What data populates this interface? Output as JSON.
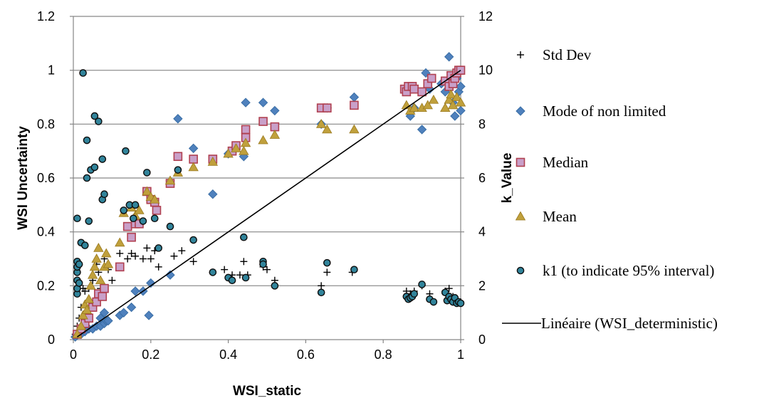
{
  "chart_data": {
    "type": "scatter",
    "xlabel": "WSI_static",
    "ylabel": "WSI Uncertainty",
    "y2label": "k_Value",
    "xlim": [
      0,
      1
    ],
    "ylim": [
      0,
      1.2
    ],
    "y2lim": [
      0,
      12
    ],
    "x_ticks": [
      "0",
      "0.2",
      "0.4",
      "0.6",
      "0.8",
      "1"
    ],
    "x_tick_values": [
      0,
      0.2,
      0.4,
      0.6,
      0.8,
      1
    ],
    "y_ticks": [
      "0",
      "0.2",
      "0.4",
      "0.6",
      "0.8",
      "1",
      "1.2"
    ],
    "y_tick_values": [
      0,
      0.2,
      0.4,
      0.6,
      0.8,
      1,
      1.2
    ],
    "y2_ticks": [
      "0",
      "2",
      "4",
      "6",
      "8",
      "10",
      "12"
    ],
    "y2_tick_values": [
      0,
      2,
      4,
      6,
      8,
      10,
      12
    ],
    "grid": {
      "horizontal": true,
      "vertical": false
    },
    "legend_position": "right",
    "series": [
      {
        "name": "Std Dev",
        "axis": "left",
        "marker": "plus",
        "color": "#000000",
        "points": [
          [
            0.005,
            0.02
          ],
          [
            0.01,
            0.05
          ],
          [
            0.015,
            0.08
          ],
          [
            0.02,
            0.12
          ],
          [
            0.025,
            0.19
          ],
          [
            0.03,
            0.18
          ],
          [
            0.04,
            0.19
          ],
          [
            0.05,
            0.22
          ],
          [
            0.06,
            0.28
          ],
          [
            0.065,
            0.25
          ],
          [
            0.07,
            0.19
          ],
          [
            0.08,
            0.3
          ],
          [
            0.09,
            0.26
          ],
          [
            0.1,
            0.22
          ],
          [
            0.12,
            0.32
          ],
          [
            0.14,
            0.3
          ],
          [
            0.15,
            0.32
          ],
          [
            0.16,
            0.31
          ],
          [
            0.18,
            0.3
          ],
          [
            0.19,
            0.34
          ],
          [
            0.2,
            0.3
          ],
          [
            0.21,
            0.33
          ],
          [
            0.22,
            0.27
          ],
          [
            0.26,
            0.31
          ],
          [
            0.28,
            0.33
          ],
          [
            0.31,
            0.29
          ],
          [
            0.36,
            0.25
          ],
          [
            0.39,
            0.26
          ],
          [
            0.41,
            0.24
          ],
          [
            0.43,
            0.24
          ],
          [
            0.45,
            0.24
          ],
          [
            0.44,
            0.29
          ],
          [
            0.49,
            0.27
          ],
          [
            0.5,
            0.26
          ],
          [
            0.52,
            0.22
          ],
          [
            0.64,
            0.2
          ],
          [
            0.655,
            0.25
          ],
          [
            0.72,
            0.25
          ],
          [
            0.86,
            0.18
          ],
          [
            0.87,
            0.17
          ],
          [
            0.88,
            0.18
          ],
          [
            0.9,
            0.2
          ],
          [
            0.92,
            0.17
          ],
          [
            0.96,
            0.18
          ],
          [
            0.97,
            0.19
          ],
          [
            0.98,
            0.16
          ],
          [
            0.99,
            0.15
          ],
          [
            1.0,
            0.14
          ]
        ]
      },
      {
        "name": "Mode of non limited",
        "axis": "left",
        "marker": "diamond",
        "color": "#4f81bd",
        "points": [
          [
            0.005,
            0.01
          ],
          [
            0.01,
            0.02
          ],
          [
            0.015,
            0.03
          ],
          [
            0.02,
            0.02
          ],
          [
            0.03,
            0.03
          ],
          [
            0.04,
            0.04
          ],
          [
            0.05,
            0.04
          ],
          [
            0.06,
            0.05
          ],
          [
            0.07,
            0.05
          ],
          [
            0.08,
            0.06
          ],
          [
            0.085,
            0.07
          ],
          [
            0.09,
            0.07
          ],
          [
            0.07,
            0.08
          ],
          [
            0.08,
            0.1
          ],
          [
            0.12,
            0.09
          ],
          [
            0.13,
            0.1
          ],
          [
            0.15,
            0.12
          ],
          [
            0.16,
            0.18
          ],
          [
            0.18,
            0.18
          ],
          [
            0.2,
            0.21
          ],
          [
            0.195,
            0.09
          ],
          [
            0.25,
            0.24
          ],
          [
            0.27,
            0.82
          ],
          [
            0.31,
            0.71
          ],
          [
            0.36,
            0.54
          ],
          [
            0.4,
            0.69
          ],
          [
            0.44,
            0.68
          ],
          [
            0.445,
            0.88
          ],
          [
            0.49,
            0.88
          ],
          [
            0.52,
            0.85
          ],
          [
            0.64,
            0.8
          ],
          [
            0.655,
            0.86
          ],
          [
            0.725,
            0.9
          ],
          [
            0.86,
            0.93
          ],
          [
            0.87,
            0.83
          ],
          [
            0.88,
            0.86
          ],
          [
            0.9,
            0.78
          ],
          [
            0.91,
            0.99
          ],
          [
            0.92,
            0.93
          ],
          [
            0.95,
            0.95
          ],
          [
            0.96,
            0.92
          ],
          [
            0.97,
            1.05
          ],
          [
            0.98,
            0.88
          ],
          [
            0.985,
            0.83
          ],
          [
            0.99,
            0.97
          ],
          [
            0.995,
            0.92
          ],
          [
            1.0,
            0.85
          ],
          [
            1.0,
            0.94
          ]
        ]
      },
      {
        "name": "Median",
        "axis": "left",
        "marker": "square",
        "color": "#c9a0c9",
        "points": [
          [
            0.01,
            0.02
          ],
          [
            0.02,
            0.04
          ],
          [
            0.03,
            0.06
          ],
          [
            0.04,
            0.08
          ],
          [
            0.05,
            0.12
          ],
          [
            0.06,
            0.14
          ],
          [
            0.065,
            0.17
          ],
          [
            0.075,
            0.16
          ],
          [
            0.08,
            0.19
          ],
          [
            0.12,
            0.27
          ],
          [
            0.14,
            0.42
          ],
          [
            0.15,
            0.38
          ],
          [
            0.16,
            0.43
          ],
          [
            0.17,
            0.43
          ],
          [
            0.19,
            0.55
          ],
          [
            0.2,
            0.52
          ],
          [
            0.21,
            0.51
          ],
          [
            0.215,
            0.48
          ],
          [
            0.25,
            0.58
          ],
          [
            0.27,
            0.68
          ],
          [
            0.31,
            0.67
          ],
          [
            0.36,
            0.67
          ],
          [
            0.41,
            0.7
          ],
          [
            0.42,
            0.72
          ],
          [
            0.445,
            0.78
          ],
          [
            0.445,
            0.75
          ],
          [
            0.49,
            0.81
          ],
          [
            0.52,
            0.79
          ],
          [
            0.64,
            0.86
          ],
          [
            0.655,
            0.86
          ],
          [
            0.725,
            0.87
          ],
          [
            0.855,
            0.93
          ],
          [
            0.86,
            0.92
          ],
          [
            0.865,
            0.94
          ],
          [
            0.875,
            0.94
          ],
          [
            0.88,
            0.93
          ],
          [
            0.9,
            0.92
          ],
          [
            0.915,
            0.95
          ],
          [
            0.925,
            0.97
          ],
          [
            0.96,
            0.96
          ],
          [
            0.97,
            0.94
          ],
          [
            0.975,
            0.98
          ],
          [
            0.98,
            0.95
          ],
          [
            0.985,
            0.97
          ],
          [
            0.99,
            0.99
          ],
          [
            0.995,
            1.0
          ],
          [
            1.0,
            1.0
          ]
        ]
      },
      {
        "name": "Mean",
        "axis": "left",
        "marker": "triangle",
        "color": "#c0a03c",
        "points": [
          [
            0.01,
            0.02
          ],
          [
            0.02,
            0.05
          ],
          [
            0.025,
            0.09
          ],
          [
            0.03,
            0.13
          ],
          [
            0.035,
            0.11
          ],
          [
            0.04,
            0.15
          ],
          [
            0.045,
            0.2
          ],
          [
            0.05,
            0.24
          ],
          [
            0.055,
            0.27
          ],
          [
            0.06,
            0.3
          ],
          [
            0.065,
            0.34
          ],
          [
            0.07,
            0.22
          ],
          [
            0.08,
            0.27
          ],
          [
            0.085,
            0.32
          ],
          [
            0.09,
            0.28
          ],
          [
            0.12,
            0.36
          ],
          [
            0.13,
            0.47
          ],
          [
            0.15,
            0.49
          ],
          [
            0.16,
            0.46
          ],
          [
            0.17,
            0.48
          ],
          [
            0.19,
            0.55
          ],
          [
            0.2,
            0.53
          ],
          [
            0.21,
            0.52
          ],
          [
            0.25,
            0.59
          ],
          [
            0.27,
            0.62
          ],
          [
            0.31,
            0.64
          ],
          [
            0.36,
            0.66
          ],
          [
            0.4,
            0.69
          ],
          [
            0.42,
            0.71
          ],
          [
            0.44,
            0.7
          ],
          [
            0.445,
            0.73
          ],
          [
            0.49,
            0.74
          ],
          [
            0.52,
            0.76
          ],
          [
            0.64,
            0.8
          ],
          [
            0.655,
            0.78
          ],
          [
            0.725,
            0.78
          ],
          [
            0.86,
            0.87
          ],
          [
            0.87,
            0.85
          ],
          [
            0.88,
            0.86
          ],
          [
            0.9,
            0.86
          ],
          [
            0.915,
            0.87
          ],
          [
            0.93,
            0.89
          ],
          [
            0.96,
            0.86
          ],
          [
            0.97,
            0.89
          ],
          [
            0.975,
            0.91
          ],
          [
            0.98,
            0.87
          ],
          [
            0.99,
            0.9
          ],
          [
            1.0,
            0.88
          ]
        ]
      },
      {
        "name": "k1 (to indicate 95% interval)",
        "axis": "right",
        "marker": "circle",
        "color": "#31849b",
        "points": [
          [
            0.01,
            1.7
          ],
          [
            0.01,
            1.9
          ],
          [
            0.01,
            2.2
          ],
          [
            0.01,
            2.5
          ],
          [
            0.01,
            2.7
          ],
          [
            0.01,
            2.9
          ],
          [
            0.01,
            4.5
          ],
          [
            0.015,
            2.1
          ],
          [
            0.015,
            2.8
          ],
          [
            0.02,
            3.6
          ],
          [
            0.025,
            9.9
          ],
          [
            0.03,
            3.5
          ],
          [
            0.035,
            7.4
          ],
          [
            0.035,
            6.0
          ],
          [
            0.04,
            4.4
          ],
          [
            0.045,
            6.3
          ],
          [
            0.055,
            6.4
          ],
          [
            0.055,
            8.3
          ],
          [
            0.065,
            8.1
          ],
          [
            0.075,
            6.7
          ],
          [
            0.075,
            5.2
          ],
          [
            0.08,
            5.4
          ],
          [
            0.13,
            4.8
          ],
          [
            0.135,
            7.0
          ],
          [
            0.145,
            5.0
          ],
          [
            0.155,
            4.5
          ],
          [
            0.16,
            5.0
          ],
          [
            0.18,
            4.4
          ],
          [
            0.19,
            6.2
          ],
          [
            0.21,
            4.5
          ],
          [
            0.22,
            3.4
          ],
          [
            0.25,
            4.2
          ],
          [
            0.27,
            6.3
          ],
          [
            0.31,
            3.7
          ],
          [
            0.36,
            2.5
          ],
          [
            0.4,
            2.3
          ],
          [
            0.41,
            2.2
          ],
          [
            0.44,
            3.8
          ],
          [
            0.445,
            2.3
          ],
          [
            0.49,
            2.9
          ],
          [
            0.49,
            2.8
          ],
          [
            0.52,
            2.0
          ],
          [
            0.64,
            1.75
          ],
          [
            0.655,
            2.85
          ],
          [
            0.725,
            2.6
          ],
          [
            0.86,
            1.6
          ],
          [
            0.865,
            1.5
          ],
          [
            0.87,
            1.55
          ],
          [
            0.875,
            1.6
          ],
          [
            0.88,
            1.7
          ],
          [
            0.9,
            2.05
          ],
          [
            0.92,
            1.5
          ],
          [
            0.93,
            1.4
          ],
          [
            0.96,
            1.75
          ],
          [
            0.965,
            1.45
          ],
          [
            0.97,
            1.6
          ],
          [
            0.975,
            1.5
          ],
          [
            0.98,
            1.4
          ],
          [
            0.985,
            1.55
          ],
          [
            0.99,
            1.35
          ],
          [
            0.995,
            1.4
          ],
          [
            1.0,
            1.35
          ]
        ]
      },
      {
        "name": "Linéaire (WSI_deterministic)",
        "axis": "left",
        "marker": "line",
        "color": "#000000",
        "points": [
          [
            0.01,
            0.01
          ],
          [
            1.0,
            1.0
          ]
        ]
      }
    ]
  }
}
